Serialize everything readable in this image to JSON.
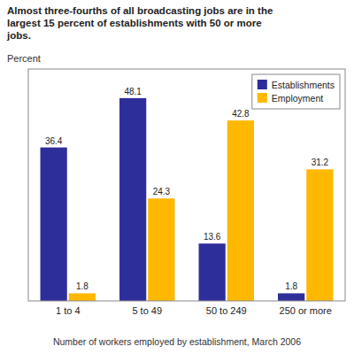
{
  "chart_data": {
    "type": "bar",
    "title": "Almost three-fourths of all broadcasting jobs are in the\nlargest 15 percent of establishments with 50 or more\njobs.",
    "y_label": "Percent",
    "x_label": "Number of workers employed by establishment, March 2006",
    "categories": [
      "1 to 4",
      "5 to 49",
      "50 to 249",
      "250 or more"
    ],
    "series": [
      {
        "name": "Establishments",
        "color": "#2E2E9B",
        "values": [
          36.4,
          48.1,
          13.6,
          1.8
        ]
      },
      {
        "name": "Employment",
        "color": "#FFB800",
        "values": [
          1.8,
          24.3,
          42.8,
          31.2
        ]
      }
    ],
    "ylim": [
      0,
      55
    ],
    "grid": false,
    "legend": "upper right",
    "data_labels": true,
    "tick_labels": "x"
  }
}
